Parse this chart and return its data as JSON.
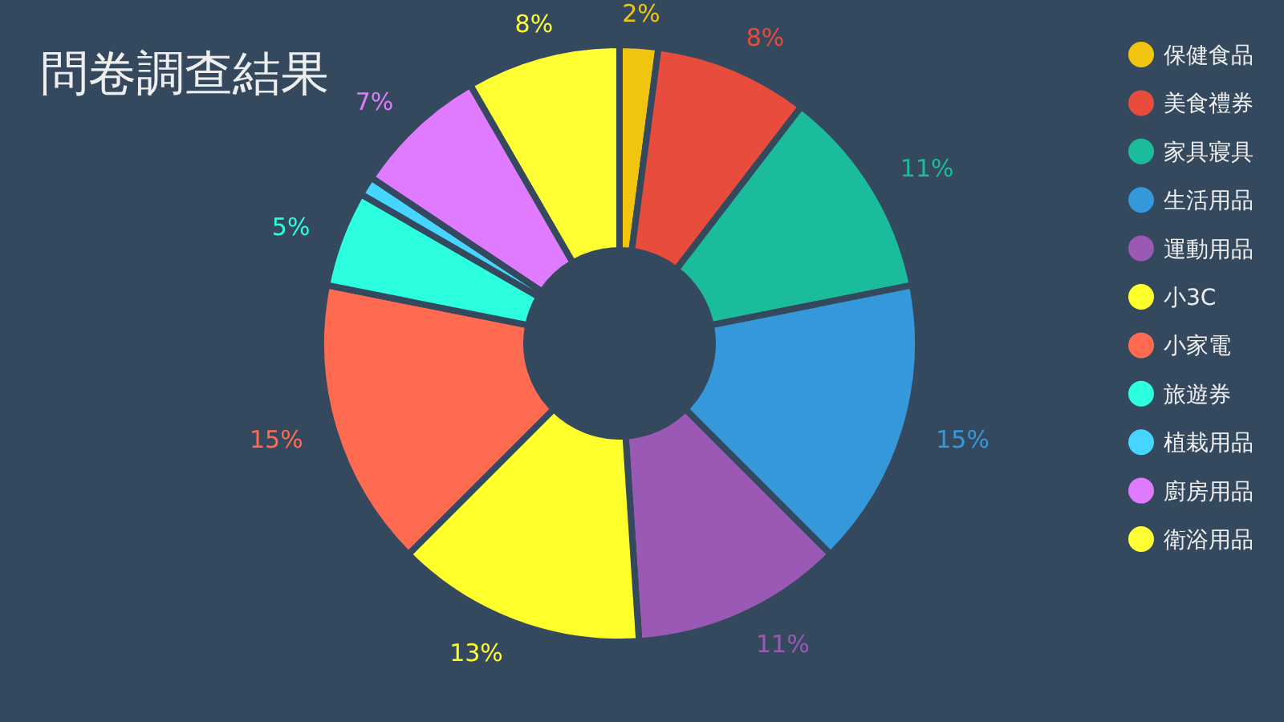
{
  "chart_data": {
    "type": "donut",
    "title": "問卷調查結果",
    "categories": [
      "保健食品",
      "美食禮券",
      "家具寢具",
      "生活用品",
      "運動用品",
      "小3C",
      "小家電",
      "旅遊券",
      "植栽用品",
      "廚房用品",
      "衛浴用品"
    ],
    "values": [
      2,
      8,
      11,
      15,
      11,
      13,
      15,
      5,
      1,
      7,
      8
    ],
    "value_labels": [
      "2%",
      "8%",
      "11%",
      "15%",
      "11%",
      "13%",
      "15%",
      "5%",
      null,
      "7%",
      "8%"
    ],
    "colors": [
      "#f1c40f",
      "#e74c3c",
      "#1abc9c",
      "#3498db",
      "#9b59b6",
      "#ffff2b",
      "#ff6b50",
      "#2bffe0",
      "#45d5ff",
      "#e07bff",
      "#ffff33"
    ],
    "legend": "right"
  }
}
